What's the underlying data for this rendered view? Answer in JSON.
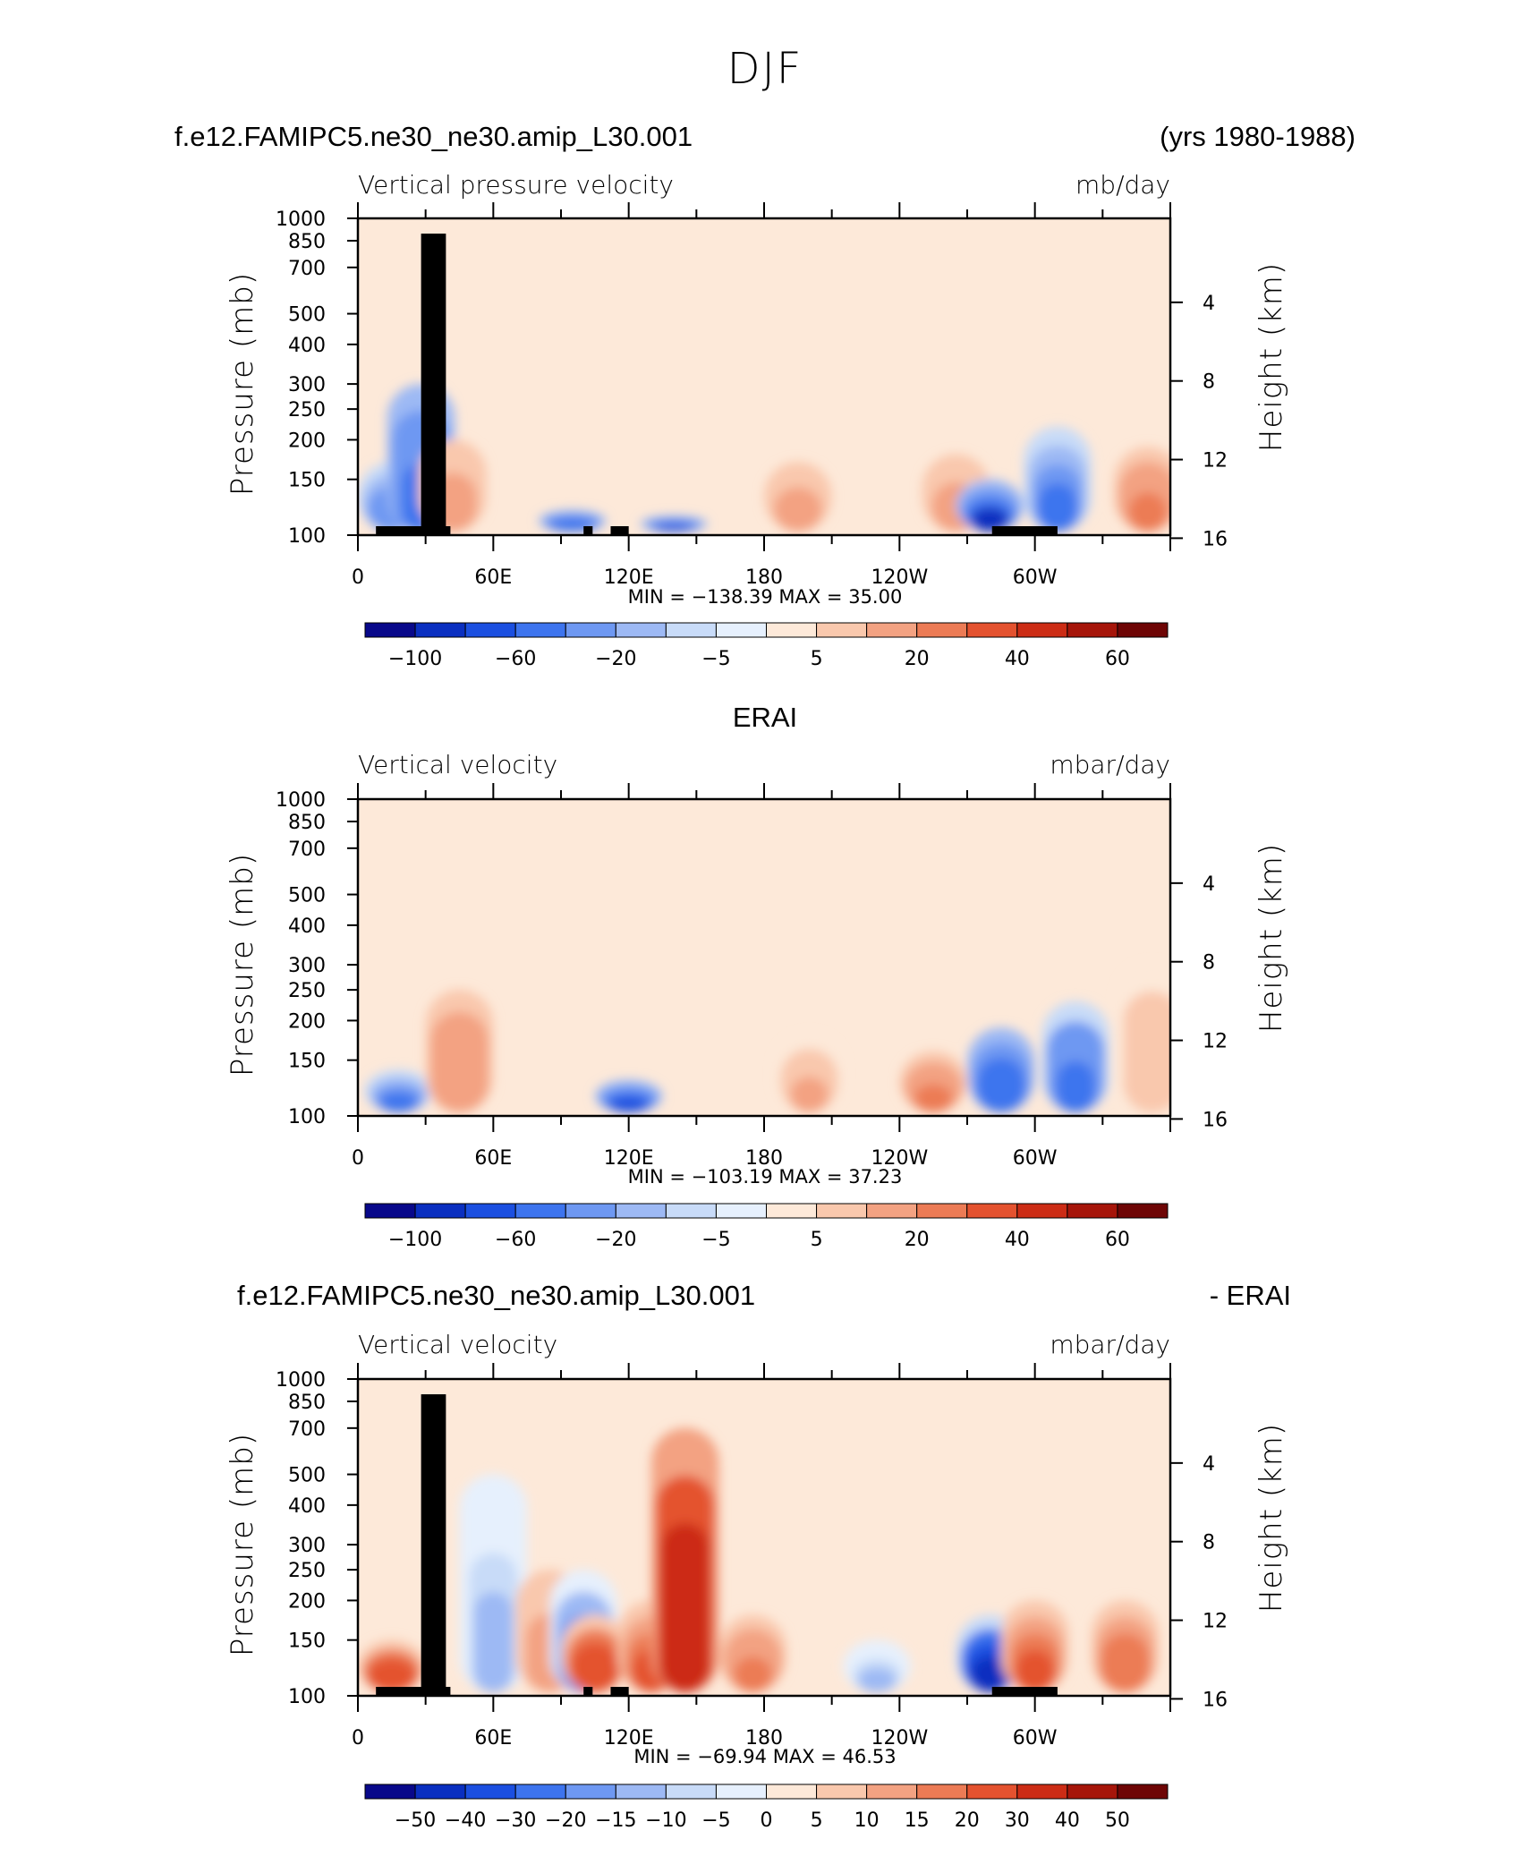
{
  "colors": {
    "cmap": [
      "#08088a",
      "#0a2fc0",
      "#1b4fe0",
      "#3d74ee",
      "#6e98f2",
      "#9db9f4",
      "#c8dbf8",
      "#e6f0fd",
      "#fde9d9",
      "#f9c8ad",
      "#f3a282",
      "#ec7b55",
      "#e4522f",
      "#cc2c15",
      "#a6150a",
      "#6e0505"
    ],
    "land": "#000000"
  },
  "title": "DJF",
  "panels": [
    {
      "header_left": "f.e12.FAMIPC5.ne30_ne30.amip_L30.001",
      "header_right": "(yrs 1980-1988)",
      "subtitle_left": "Vertical pressure velocity",
      "subtitle_right": "mb/day",
      "minmax": "MIN =  −138.39   MAX =   35.00",
      "colorbar_labels": [
        "−100",
        "−60",
        "−20",
        "−5",
        "5",
        "20",
        "40",
        "60"
      ]
    },
    {
      "header_center": "ERAI",
      "subtitle_left": "Vertical velocity",
      "subtitle_right": "mbar/day",
      "minmax": "MIN =  −103.19   MAX =   37.23",
      "colorbar_labels": [
        "−100",
        "−60",
        "−20",
        "−5",
        "5",
        "20",
        "40",
        "60"
      ]
    },
    {
      "header_left": "f.e12.FAMIPC5.ne30_ne30.amip_L30.001",
      "header_right": "- ERAI",
      "subtitle_left": "Vertical velocity",
      "subtitle_right": "mbar/day",
      "minmax": "MIN =  −69.94   MAX =   46.53",
      "colorbar_labels": [
        "−50",
        "−40",
        "−30",
        "−20",
        "−15",
        "−10",
        "−5",
        "0",
        "5",
        "10",
        "15",
        "20",
        "30",
        "40",
        "50"
      ]
    }
  ],
  "axes": {
    "ylabel_left": "Pressure (mb)",
    "ylabel_right": "Height (km)",
    "pressure_ticks": [
      "100",
      "150",
      "200",
      "250",
      "300",
      "400",
      "500",
      "700",
      "850",
      "1000"
    ],
    "height_ticks": [
      "16",
      "12",
      "8",
      "4"
    ],
    "x_ticks": [
      "0",
      "60E",
      "120E",
      "180",
      "120W",
      "60W"
    ]
  },
  "chart_data": [
    {
      "type": "heatmap",
      "title": "f.e12.FAMIPC5.ne30_ne30.amip_L30.001",
      "xlabel": "",
      "ylabel": "Pressure (mb)",
      "units": "mb/day",
      "x_range": [
        0,
        360
      ],
      "y_range": [
        1000,
        100
      ],
      "y_scale": "log",
      "levels": [
        -120,
        -100,
        -80,
        -60,
        -40,
        -20,
        -10,
        -5,
        0,
        5,
        10,
        20,
        30,
        40,
        50,
        60,
        70
      ],
      "min": -138.39,
      "max": 35.0,
      "features": [
        {
          "lon": 15,
          "p_top": 170,
          "value": -35
        },
        {
          "lon": 28,
          "p_top": 300,
          "value": -50
        },
        {
          "lon": 42,
          "p_top": 200,
          "value": 18
        },
        {
          "lon": 95,
          "p_top": 120,
          "value": -55
        },
        {
          "lon": 140,
          "p_top": 115,
          "value": -60
        },
        {
          "lon": 195,
          "p_top": 170,
          "value": 15
        },
        {
          "lon": 265,
          "p_top": 180,
          "value": 18
        },
        {
          "lon": 280,
          "p_top": 150,
          "value": -80
        },
        {
          "lon": 310,
          "p_top": 220,
          "value": -40
        },
        {
          "lon": 350,
          "p_top": 190,
          "value": 22
        }
      ]
    },
    {
      "type": "heatmap",
      "title": "ERAI",
      "xlabel": "",
      "ylabel": "Pressure (mb)",
      "units": "mbar/day",
      "x_range": [
        0,
        360
      ],
      "y_range": [
        1000,
        100
      ],
      "y_scale": "log",
      "levels": [
        -120,
        -100,
        -80,
        -60,
        -40,
        -20,
        -10,
        -5,
        0,
        5,
        10,
        20,
        30,
        40,
        50,
        60,
        70
      ],
      "min": -103.19,
      "max": 37.23,
      "features": [
        {
          "lon": 18,
          "p_top": 140,
          "value": -40
        },
        {
          "lon": 45,
          "p_top": 250,
          "value": 20
        },
        {
          "lon": 120,
          "p_top": 130,
          "value": -60
        },
        {
          "lon": 200,
          "p_top": 180,
          "value": 12
        },
        {
          "lon": 255,
          "p_top": 160,
          "value": 22
        },
        {
          "lon": 285,
          "p_top": 190,
          "value": -55
        },
        {
          "lon": 318,
          "p_top": 230,
          "value": -45
        },
        {
          "lon": 352,
          "p_top": 300,
          "value": 10
        }
      ]
    },
    {
      "type": "heatmap",
      "title": "f.e12.FAMIPC5.ne30_ne30.amip_L30.001 - ERAI",
      "xlabel": "",
      "ylabel": "Pressure (mb)",
      "units": "mbar/day",
      "x_range": [
        0,
        360
      ],
      "y_range": [
        1000,
        100
      ],
      "y_scale": "log",
      "levels": [
        -60,
        -50,
        -40,
        -30,
        -20,
        -15,
        -10,
        -5,
        0,
        5,
        10,
        15,
        20,
        30,
        40,
        50,
        60
      ],
      "min": -69.94,
      "max": 46.53,
      "features": [
        {
          "lon": 15,
          "p_top": 150,
          "value": 30
        },
        {
          "lon": 60,
          "p_top": 500,
          "value": -10
        },
        {
          "lon": 85,
          "p_top": 250,
          "value": 15
        },
        {
          "lon": 100,
          "p_top": 250,
          "value": -25
        },
        {
          "lon": 105,
          "p_top": 180,
          "value": 30
        },
        {
          "lon": 130,
          "p_top": 200,
          "value": 25
        },
        {
          "lon": 145,
          "p_top": 700,
          "value": 40
        },
        {
          "lon": 175,
          "p_top": 180,
          "value": 18
        },
        {
          "lon": 230,
          "p_top": 150,
          "value": -10
        },
        {
          "lon": 280,
          "p_top": 180,
          "value": -45
        },
        {
          "lon": 300,
          "p_top": 200,
          "value": 25
        },
        {
          "lon": 340,
          "p_top": 200,
          "value": 20
        }
      ]
    }
  ]
}
